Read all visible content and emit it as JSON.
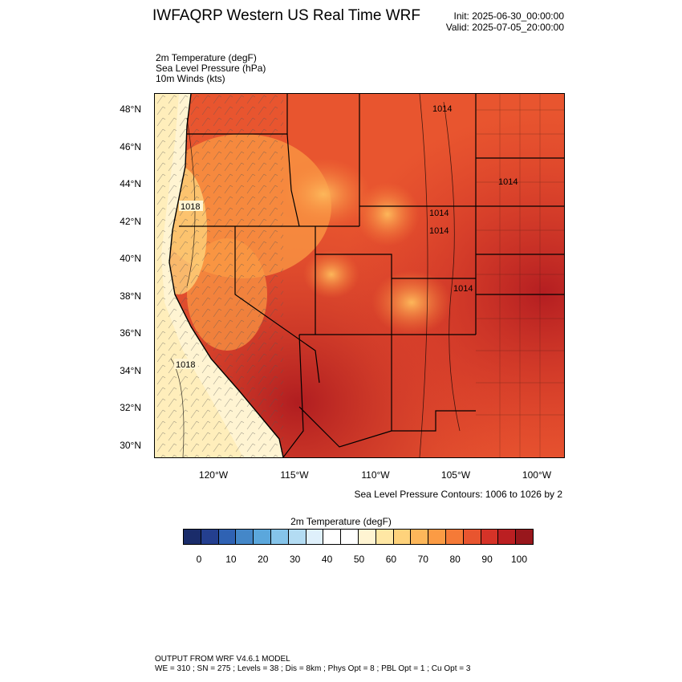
{
  "header": {
    "title": "IWFAQRP Western US Real Time WRF",
    "init": "Init: 2025-06-30_00:00:00",
    "valid": "Valid: 2025-07-05_20:00:00"
  },
  "fields": [
    "2m Temperature   (degF)",
    "Sea Level Pressure   (hPa)",
    "10m Winds   (kts)"
  ],
  "map": {
    "lat_labels": [
      "48°N",
      "46°N",
      "44°N",
      "42°N",
      "40°N",
      "38°N",
      "36°N",
      "34°N",
      "32°N",
      "30°N"
    ],
    "lon_labels": [
      "120°W",
      "115°W",
      "110°W",
      "105°W",
      "100°W"
    ],
    "pressure_labels": [
      "1018",
      "1018",
      "1014",
      "1014",
      "1014",
      "1014",
      "1014"
    ]
  },
  "contour_note": "Sea Level Pressure Contours: 1006 to 1026 by 2",
  "colorbar": {
    "title": "2m Temperature  (degF)",
    "colors": [
      "#1a2c6a",
      "#243f8f",
      "#2f62b3",
      "#4487c8",
      "#5ba7dc",
      "#85c4ea",
      "#b3dcf3",
      "#dff0fb",
      "#ffffff",
      "#ffffff",
      "#fff4d2",
      "#ffe7a4",
      "#fed27b",
      "#fdb75a",
      "#fb9b44",
      "#f57a37",
      "#e8552f",
      "#d53328",
      "#bb1f22",
      "#98171c"
    ],
    "tick_labels": [
      "0",
      "10",
      "20",
      "30",
      "40",
      "50",
      "60",
      "70",
      "80",
      "90",
      "100"
    ]
  },
  "footer": {
    "line1": "OUTPUT FROM WRF V4.6.1 MODEL",
    "line2": "WE = 310 ; SN = 275 ; Levels = 38 ; Dis = 8km ; Phys Opt = 8 ; PBL Opt = 1 ; Cu Opt = 3"
  }
}
